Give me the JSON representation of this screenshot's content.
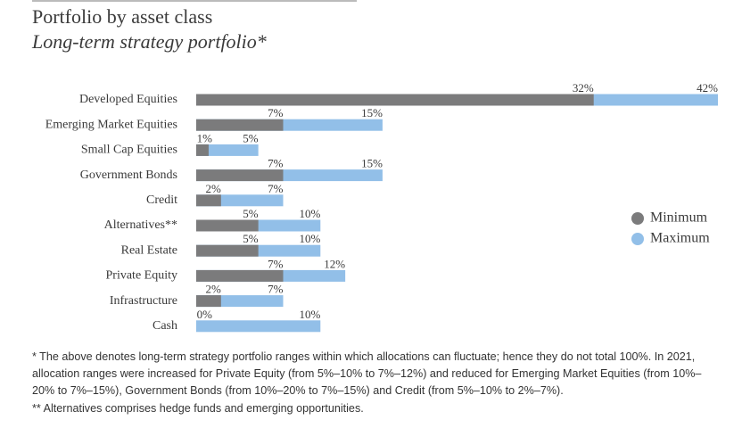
{
  "chart_data": {
    "type": "range-bar",
    "title": "Portfolio by asset class",
    "subtitle": "Long-term strategy portfolio*",
    "categories": [
      "Developed Equities",
      "Emerging Market Equities",
      "Small Cap Equities",
      "Government Bonds",
      "Credit",
      "Alternatives**",
      "Real Estate",
      "Private Equity",
      "Infrastructure",
      "Cash"
    ],
    "series": [
      {
        "name": "Minimum",
        "color": "#7b7b7c",
        "values": [
          32,
          7,
          1,
          7,
          2,
          5,
          5,
          7,
          2,
          0
        ],
        "value_labels": [
          "32%",
          "7%",
          "1%",
          "7%",
          "2%",
          "5%",
          "5%",
          "7%",
          "2%",
          "0%"
        ]
      },
      {
        "name": "Maximum",
        "color": "#92bfe8",
        "values": [
          42,
          15,
          5,
          15,
          7,
          10,
          10,
          12,
          7,
          10
        ],
        "value_labels": [
          "42%",
          "15%",
          "5%",
          "15%",
          "7%",
          "10%",
          "10%",
          "12%",
          "7%",
          "10%"
        ]
      }
    ],
    "xlim": [
      0,
      42
    ],
    "legend": "right",
    "notes": [
      "* The above denotes long-term strategy portfolio ranges within which allocations can fluctuate; hence they do not total 100%. In 2021, allocation ranges were increased for Private Equity (from 5%–10% to 7%–12%) and reduced for Emerging Market Equities (from 10%–20% to 7%–15%), Government Bonds (from 10%–20% to 7%–15%) and Credit (from 5%–10% to 2%–7%).",
      "** Alternatives comprises hedge funds and emerging opportunities."
    ]
  }
}
